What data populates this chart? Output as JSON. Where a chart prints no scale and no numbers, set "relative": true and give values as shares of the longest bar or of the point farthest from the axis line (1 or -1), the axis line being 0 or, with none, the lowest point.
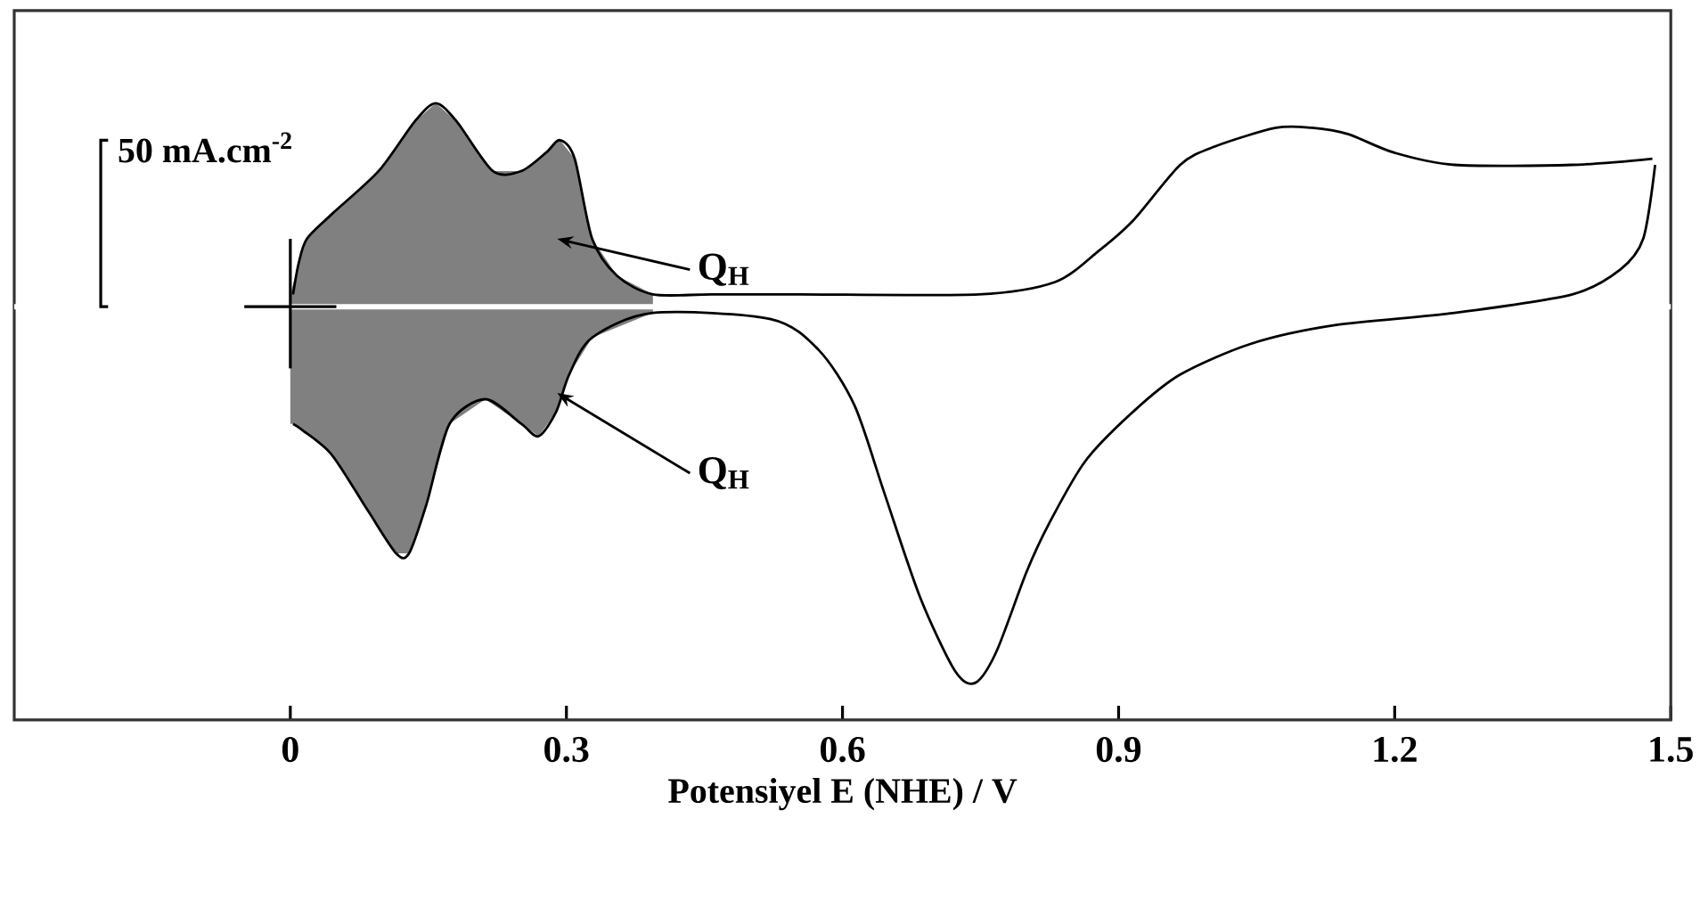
{
  "chart_data": {
    "type": "line",
    "relative": true,
    "xlabel": "Potensiyel E (NHE) / V",
    "xlim": [
      -0.3,
      1.5
    ],
    "xticks": [
      0,
      0.3,
      0.6,
      0.9,
      1.2,
      1.5
    ],
    "grid": false,
    "marker": "none",
    "line_style": "solid",
    "ref_lines": [
      {
        "axis": "y",
        "value": 0.67,
        "color": "#ffffff"
      }
    ],
    "annotations": [
      "50 mA.cm$^{-2}$",
      "Q$_{H}$",
      "Q$_{H}$"
    ],
    "series": [
      {
        "type": "area",
        "color": "#808080",
        "x": [
          0.0,
          0.009,
          0.018,
          0.045,
          0.096,
          0.135,
          0.158,
          0.181,
          0.22,
          0.251,
          0.278,
          0.293,
          0.309,
          0.328,
          0.355,
          0.394,
          0.394,
          0.328,
          0.303,
          0.289,
          0.27,
          0.251,
          0.212,
          0.173,
          0.148,
          0.129,
          0.115,
          0.084,
          0.045,
          0.013,
          0.003,
          0.0
        ],
        "values": [
          0.69,
          0.74,
          0.78,
          0.82,
          0.89,
          0.97,
          1.0,
          0.97,
          0.89,
          0.89,
          0.92,
          0.94,
          0.91,
          0.78,
          0.72,
          0.69,
          0.66,
          0.62,
          0.56,
          0.5,
          0.46,
          0.48,
          0.52,
          0.48,
          0.35,
          0.27,
          0.27,
          0.34,
          0.43,
          0.47,
          0.48,
          0.48
        ]
      },
      {
        "color": "#000000",
        "x": [
          0.003,
          0.009,
          0.018,
          0.045,
          0.096,
          0.135,
          0.158,
          0.181,
          0.22,
          0.251,
          0.278,
          0.293,
          0.309,
          0.328,
          0.355,
          0.394,
          0.458,
          0.554,
          0.748,
          0.831,
          0.878,
          0.916,
          0.967,
          1.005,
          1.071,
          1.11,
          1.149,
          1.199,
          1.265,
          1.393,
          1.48
        ],
        "values": [
          0.69,
          0.74,
          0.78,
          0.82,
          0.89,
          0.97,
          1.0,
          0.97,
          0.89,
          0.89,
          0.92,
          0.94,
          0.91,
          0.78,
          0.72,
          0.69,
          0.69,
          0.69,
          0.69,
          0.71,
          0.76,
          0.81,
          0.9,
          0.93,
          0.96,
          0.96,
          0.95,
          0.92,
          0.9,
          0.9,
          0.91
        ]
      },
      {
        "color": "#000000",
        "x": [
          1.483,
          1.47,
          1.445,
          1.393,
          1.265,
          1.135,
          1.044,
          0.967,
          0.916,
          0.864,
          0.825,
          0.8,
          0.767,
          0.744,
          0.722,
          0.684,
          0.645,
          0.613,
          0.574,
          0.522,
          0.394,
          0.328,
          0.303,
          0.289,
          0.27,
          0.251,
          0.212,
          0.173,
          0.148,
          0.129,
          0.115,
          0.084,
          0.045,
          0.013,
          0.003
        ],
        "values": [
          0.9,
          0.78,
          0.73,
          0.69,
          0.66,
          0.64,
          0.61,
          0.56,
          0.5,
          0.42,
          0.32,
          0.24,
          0.11,
          0.06,
          0.08,
          0.2,
          0.37,
          0.51,
          0.6,
          0.65,
          0.66,
          0.62,
          0.56,
          0.5,
          0.46,
          0.48,
          0.52,
          0.48,
          0.35,
          0.27,
          0.27,
          0.34,
          0.43,
          0.47,
          0.48
        ]
      }
    ]
  }
}
